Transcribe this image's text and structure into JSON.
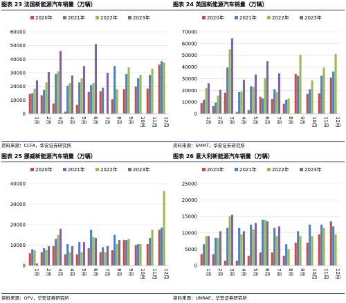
{
  "colors": {
    "2020年": "#c0504d",
    "2021年": "#4f81bd",
    "2022年": "#9bbb59",
    "2023年": "#8064a2"
  },
  "panels": [
    {
      "title": "图表 23 法国新能源汽车销量（万辆）",
      "source": "资料来源：CCFA，华安证券研究所"
    },
    {
      "title": "图表 24 英国新能源汽车销量（万辆）",
      "source": "资料来源：SMMT，华安证券研究所"
    },
    {
      "title": "图表 25 挪威新能源汽车销量（万辆）",
      "source": "资料来源：OFV，华安证券研究所"
    },
    {
      "title": "图表 26 意大利新能源汽车销量（万辆）",
      "source": "资料来源：UNRAE，华安证券研究所"
    }
  ],
  "chart_data": [
    {
      "type": "bar",
      "categories": [
        "1月",
        "2月",
        "3月",
        "4月",
        "5月",
        "6月",
        "7月",
        "8月",
        "9月",
        "10月",
        "11月",
        "12月"
      ],
      "ylim": [
        0,
        60000
      ],
      "yticks": [
        "0",
        "10000",
        "20000",
        "30000",
        "40000",
        "50000",
        "60000"
      ],
      "grid": true,
      "legend": "top",
      "series": [
        {
          "name": "2020年",
          "values": [
            14500,
            13500,
            7500,
            1500,
            6500,
            16000,
            16500,
            10500,
            18000,
            20000,
            18500,
            36000
          ]
        },
        {
          "name": "2021年",
          "values": [
            15000,
            17500,
            29000,
            20500,
            23000,
            21000,
            19000,
            35000,
            29000,
            26000,
            28500,
            38500
          ]
        },
        {
          "name": "2022年",
          "values": [
            18500,
            23000,
            31000,
            22500,
            26000,
            22500,
            0,
            18000,
            34000,
            28500,
            33000,
            37500
          ]
        },
        {
          "name": "2023年",
          "values": [
            24500,
            30500,
            46000,
            28000,
            35000,
            51000,
            30000,
            0,
            0,
            0,
            0,
            0
          ]
        }
      ]
    },
    {
      "type": "bar",
      "categories": [
        "1月",
        "2月",
        "3月",
        "4月",
        "5月",
        "6月",
        "7月",
        "8月",
        "9月",
        "10月",
        "11月",
        "12月"
      ],
      "ylim": [
        0,
        70000
      ],
      "yticks": [
        "0",
        "10000",
        "20000",
        "30000",
        "40000",
        "50000",
        "60000",
        "70000"
      ],
      "grid": true,
      "legend": "top",
      "series": [
        {
          "name": "2020年",
          "values": [
            9000,
            6500,
            18000,
            1500,
            3000,
            14500,
            12500,
            8500,
            34000,
            17000,
            17500,
            31000
          ]
        },
        {
          "name": "2021年",
          "values": [
            12000,
            9500,
            39500,
            18500,
            23500,
            13000,
            21000,
            12000,
            32500,
            21000,
            32500,
            36000
          ]
        },
        {
          "name": "2022年",
          "values": [
            22000,
            15500,
            55000,
            19000,
            23000,
            30500,
            18500,
            13000,
            50500,
            28500,
            39500,
            51000
          ]
        },
        {
          "name": "2023年",
          "values": [
            26000,
            20500,
            64500,
            29000,
            33500,
            45000,
            34500,
            0,
            0,
            0,
            0,
            0
          ]
        }
      ]
    },
    {
      "type": "bar",
      "categories": [
        "1月",
        "2月",
        "3月",
        "4月",
        "5月",
        "6月",
        "7月",
        "8月",
        "9月",
        "10月",
        "11月",
        "12月"
      ],
      "ylim": [
        0,
        40000
      ],
      "yticks": [
        "0",
        "10000",
        "20000",
        "30000",
        "40000"
      ],
      "grid": true,
      "legend": "top",
      "series": [
        {
          "name": "2020年",
          "values": [
            6000,
            6500,
            9500,
            5500,
            5500,
            8500,
            6500,
            7500,
            12500,
            10000,
            10500,
            17500
          ]
        },
        {
          "name": "2021年",
          "values": [
            8000,
            8500,
            13000,
            10500,
            11500,
            17500,
            9000,
            15000,
            12500,
            10500,
            13500,
            18500
          ]
        },
        {
          "name": "2022年",
          "values": [
            7500,
            7500,
            15000,
            6500,
            6500,
            14000,
            6500,
            10500,
            13000,
            10500,
            17500,
            36500
          ]
        },
        {
          "name": "2023年",
          "values": [
            1000,
            9500,
            18000,
            9500,
            11500,
            13500,
            9500,
            12500,
            0,
            0,
            0,
            0
          ]
        }
      ]
    },
    {
      "type": "bar",
      "categories": [
        "1月",
        "2月",
        "3月",
        "4月",
        "5月",
        "6月",
        "7月",
        "8月",
        "9月",
        "10月",
        "11月",
        "12月"
      ],
      "ylim": [
        0,
        25000
      ],
      "yticks": [
        "0",
        "5000",
        "10000",
        "15000",
        "20000",
        "25000"
      ],
      "grid": true,
      "legend": "top",
      "series": [
        {
          "name": "2020年",
          "values": [
            3500,
            3500,
            1500,
            1500,
            3000,
            4000,
            4000,
            3000,
            7000,
            7000,
            9500,
            13500
          ]
        },
        {
          "name": "2021年",
          "values": [
            6500,
            8500,
            11500,
            11500,
            12500,
            14000,
            11500,
            6500,
            10500,
            12500,
            12500,
            12000
          ]
        },
        {
          "name": "2022年",
          "values": [
            9000,
            8500,
            15000,
            9500,
            11000,
            14000,
            9000,
            5000,
            9000,
            9000,
            11500,
            9500
          ]
        },
        {
          "name": "2023年",
          "values": [
            9000,
            10500,
            15500,
            10500,
            13000,
            13500,
            12000,
            0,
            0,
            0,
            0,
            0
          ]
        }
      ]
    }
  ]
}
